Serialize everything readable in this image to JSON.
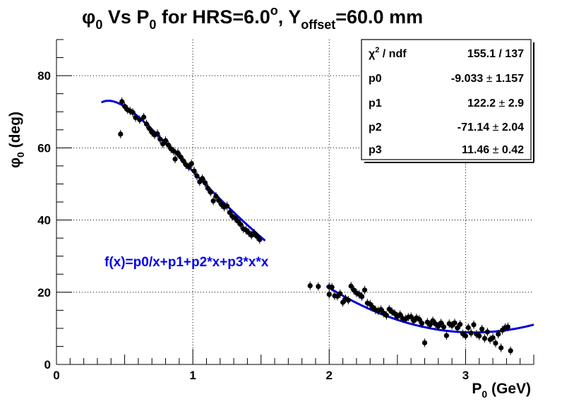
{
  "chart_data": {
    "type": "scatter",
    "title": {
      "phi": "φ",
      "phi_sub": "0",
      "mid": " Vs P",
      "p_sub": "0",
      "mid2": " for HRS=6.0",
      "deg_sup": "o",
      "mid3": ", Y",
      "y_sub": "offset",
      "tail": "=60.0 mm"
    },
    "xlabel": {
      "p": "P",
      "sub": "0",
      "rest": " (GeV)"
    },
    "ylabel": {
      "phi": "φ",
      "sub": "0",
      "rest": " (deg)"
    },
    "xlim": [
      0,
      3.5
    ],
    "ylim": [
      0,
      90
    ],
    "x_ticks": [
      "0",
      "1",
      "2",
      "3"
    ],
    "y_ticks": [
      "0",
      "20",
      "40",
      "60",
      "80"
    ],
    "grid": true,
    "fit_label": "f(x)=p0/x+p1+p2*x+p3*x*x",
    "stats": {
      "header": {
        "chi": "χ",
        "sup": "2",
        "rest": " / ndf",
        "value": "155.1 / 137"
      },
      "rows": [
        {
          "name": "p0",
          "value": "-9.033",
          "pm": "±",
          "err": "1.157"
        },
        {
          "name": "p1",
          "value": "122.2",
          "pm": "±",
          "err": "2.9"
        },
        {
          "name": "p2",
          "value": "-71.14",
          "pm": "±",
          "err": "2.04"
        },
        {
          "name": "p3",
          "value": "11.46",
          "pm": "±",
          "err": "0.42"
        }
      ]
    },
    "fit_params": {
      "p0": -9.033,
      "p1": 122.2,
      "p2": -71.14,
      "p3": 11.46
    },
    "fit_segments": [
      [
        0.33,
        1.53
      ],
      [
        1.98,
        3.5
      ]
    ],
    "points": [
      {
        "x": 0.47,
        "y": 63.8
      },
      {
        "x": 0.48,
        "y": 72.8
      },
      {
        "x": 0.5,
        "y": 71.5
      },
      {
        "x": 0.52,
        "y": 70.6
      },
      {
        "x": 0.54,
        "y": 70.2
      },
      {
        "x": 0.56,
        "y": 69.8
      },
      {
        "x": 0.58,
        "y": 68.4
      },
      {
        "x": 0.61,
        "y": 67.8
      },
      {
        "x": 0.64,
        "y": 68.5
      },
      {
        "x": 0.66,
        "y": 66.6
      },
      {
        "x": 0.68,
        "y": 65.4
      },
      {
        "x": 0.7,
        "y": 64.3
      },
      {
        "x": 0.72,
        "y": 63.6
      },
      {
        "x": 0.74,
        "y": 63.9
      },
      {
        "x": 0.76,
        "y": 62.4
      },
      {
        "x": 0.78,
        "y": 61.1
      },
      {
        "x": 0.8,
        "y": 62.0
      },
      {
        "x": 0.82,
        "y": 60.8
      },
      {
        "x": 0.84,
        "y": 59.7
      },
      {
        "x": 0.86,
        "y": 59.1
      },
      {
        "x": 0.87,
        "y": 56.9
      },
      {
        "x": 0.89,
        "y": 58.6
      },
      {
        "x": 0.91,
        "y": 57.5
      },
      {
        "x": 0.93,
        "y": 56.4
      },
      {
        "x": 0.95,
        "y": 55.3
      },
      {
        "x": 0.97,
        "y": 54.7
      },
      {
        "x": 0.99,
        "y": 55.6
      },
      {
        "x": 1.01,
        "y": 53.6
      },
      {
        "x": 1.03,
        "y": 52.2
      },
      {
        "x": 1.05,
        "y": 50.6
      },
      {
        "x": 1.07,
        "y": 51.5
      },
      {
        "x": 1.09,
        "y": 50.3
      },
      {
        "x": 1.11,
        "y": 48.8
      },
      {
        "x": 1.13,
        "y": 47.7
      },
      {
        "x": 1.15,
        "y": 45.3
      },
      {
        "x": 1.17,
        "y": 46.6
      },
      {
        "x": 1.19,
        "y": 45.4
      },
      {
        "x": 1.21,
        "y": 44.3
      },
      {
        "x": 1.23,
        "y": 43.6
      },
      {
        "x": 1.25,
        "y": 43.9
      },
      {
        "x": 1.27,
        "y": 42.1
      },
      {
        "x": 1.29,
        "y": 41.0
      },
      {
        "x": 1.31,
        "y": 40.5
      },
      {
        "x": 1.33,
        "y": 39.7
      },
      {
        "x": 1.35,
        "y": 38.8
      },
      {
        "x": 1.37,
        "y": 37.6
      },
      {
        "x": 1.39,
        "y": 37.2
      },
      {
        "x": 1.41,
        "y": 36.5
      },
      {
        "x": 1.43,
        "y": 35.8
      },
      {
        "x": 1.45,
        "y": 36.4
      },
      {
        "x": 1.47,
        "y": 35.5
      },
      {
        "x": 1.49,
        "y": 34.6
      },
      {
        "x": 1.86,
        "y": 21.8
      },
      {
        "x": 1.92,
        "y": 21.6
      },
      {
        "x": 2.0,
        "y": 21.5
      },
      {
        "x": 2.0,
        "y": 19.4
      },
      {
        "x": 2.02,
        "y": 21.4
      },
      {
        "x": 2.04,
        "y": 19.0
      },
      {
        "x": 2.06,
        "y": 18.9
      },
      {
        "x": 2.08,
        "y": 19.6
      },
      {
        "x": 2.1,
        "y": 17.2
      },
      {
        "x": 2.12,
        "y": 18.2
      },
      {
        "x": 2.14,
        "y": 17.8
      },
      {
        "x": 2.16,
        "y": 21.7
      },
      {
        "x": 2.18,
        "y": 20.6
      },
      {
        "x": 2.2,
        "y": 19.8
      },
      {
        "x": 2.22,
        "y": 19.4
      },
      {
        "x": 2.24,
        "y": 18.8
      },
      {
        "x": 2.26,
        "y": 20.6
      },
      {
        "x": 2.28,
        "y": 17.0
      },
      {
        "x": 2.3,
        "y": 16.7
      },
      {
        "x": 2.32,
        "y": 15.8
      },
      {
        "x": 2.34,
        "y": 15.1
      },
      {
        "x": 2.36,
        "y": 14.9
      },
      {
        "x": 2.38,
        "y": 15.2
      },
      {
        "x": 2.4,
        "y": 14.2
      },
      {
        "x": 2.42,
        "y": 13.6
      },
      {
        "x": 2.44,
        "y": 15.3
      },
      {
        "x": 2.46,
        "y": 14.6
      },
      {
        "x": 2.48,
        "y": 14.1
      },
      {
        "x": 2.5,
        "y": 13.3
      },
      {
        "x": 2.52,
        "y": 13.8
      },
      {
        "x": 2.54,
        "y": 12.7
      },
      {
        "x": 2.56,
        "y": 12.6
      },
      {
        "x": 2.58,
        "y": 13.1
      },
      {
        "x": 2.6,
        "y": 13.2
      },
      {
        "x": 2.62,
        "y": 12.1
      },
      {
        "x": 2.64,
        "y": 12.9
      },
      {
        "x": 2.66,
        "y": 12.5
      },
      {
        "x": 2.68,
        "y": 11.4
      },
      {
        "x": 2.7,
        "y": 6.0
      },
      {
        "x": 2.72,
        "y": 11.7
      },
      {
        "x": 2.74,
        "y": 11.0
      },
      {
        "x": 2.76,
        "y": 12.1
      },
      {
        "x": 2.78,
        "y": 11.2
      },
      {
        "x": 2.8,
        "y": 10.6
      },
      {
        "x": 2.82,
        "y": 11.5
      },
      {
        "x": 2.84,
        "y": 10.4
      },
      {
        "x": 2.86,
        "y": 8.0
      },
      {
        "x": 2.88,
        "y": 11.3
      },
      {
        "x": 2.9,
        "y": 10.8
      },
      {
        "x": 2.92,
        "y": 11.5
      },
      {
        "x": 2.94,
        "y": 10.1
      },
      {
        "x": 2.96,
        "y": 11.1
      },
      {
        "x": 2.98,
        "y": 8.5
      },
      {
        "x": 3.0,
        "y": 7.9
      },
      {
        "x": 3.02,
        "y": 10.2
      },
      {
        "x": 3.04,
        "y": 8.7
      },
      {
        "x": 3.06,
        "y": 11.0
      },
      {
        "x": 3.08,
        "y": 8.4
      },
      {
        "x": 3.1,
        "y": 7.9
      },
      {
        "x": 3.12,
        "y": 9.8
      },
      {
        "x": 3.14,
        "y": 7.2
      },
      {
        "x": 3.16,
        "y": 9.0
      },
      {
        "x": 3.18,
        "y": 6.9
      },
      {
        "x": 3.2,
        "y": 7.4
      },
      {
        "x": 3.22,
        "y": 5.9
      },
      {
        "x": 3.24,
        "y": 8.4
      },
      {
        "x": 3.26,
        "y": 4.6
      },
      {
        "x": 3.27,
        "y": 9.5
      },
      {
        "x": 3.29,
        "y": 10.2
      },
      {
        "x": 3.31,
        "y": 10.4
      },
      {
        "x": 3.33,
        "y": 3.8
      }
    ]
  }
}
